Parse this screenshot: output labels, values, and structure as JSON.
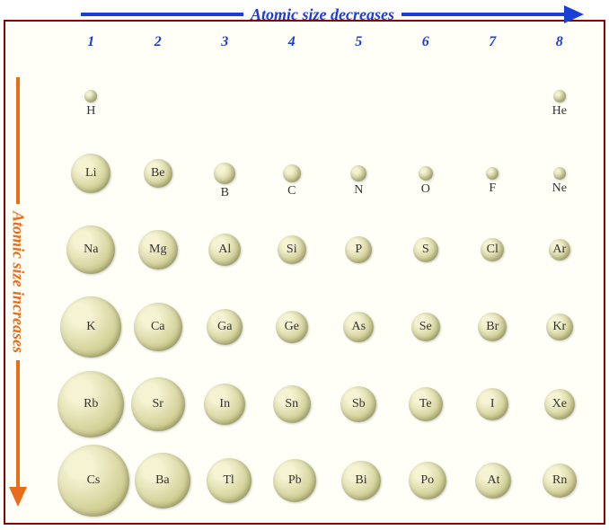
{
  "title_top": "Atomic size decreases",
  "title_left": "Atomic size increases",
  "top_arrow_color": "#1a3fd4",
  "left_arrow_color": "#e86c1a",
  "top_label_color": "#1a3fd4",
  "left_label_color": "#e86c1a",
  "header_color": "#1a3fd4",
  "border_color": "#8b0000",
  "atom_gradient_light": "#f5f3d2",
  "atom_gradient_dark": "#b8b66a",
  "label_color": "#333333",
  "background": "#fffff8",
  "title_fontsize": 18,
  "header_fontsize": 16,
  "element_fontsize": 14,
  "columns": [
    "1",
    "2",
    "3",
    "4",
    "5",
    "6",
    "7",
    "8"
  ],
  "rows": [
    [
      {
        "sym": "H",
        "r": 7,
        "below": true
      },
      null,
      null,
      null,
      null,
      null,
      null,
      {
        "sym": "He",
        "r": 7,
        "below": true
      }
    ],
    [
      {
        "sym": "Li",
        "r": 22,
        "below": false
      },
      {
        "sym": "Be",
        "r": 16,
        "below": false
      },
      {
        "sym": "B",
        "r": 12,
        "below": true
      },
      {
        "sym": "C",
        "r": 10,
        "below": true
      },
      {
        "sym": "N",
        "r": 9,
        "below": true
      },
      {
        "sym": "O",
        "r": 8,
        "below": true
      },
      {
        "sym": "F",
        "r": 7,
        "below": true
      },
      {
        "sym": "Ne",
        "r": 7,
        "below": true
      }
    ],
    [
      {
        "sym": "Na",
        "r": 27,
        "below": false
      },
      {
        "sym": "Mg",
        "r": 22,
        "below": false
      },
      {
        "sym": "Al",
        "r": 18,
        "below": false
      },
      {
        "sym": "Si",
        "r": 16,
        "below": false
      },
      {
        "sym": "P",
        "r": 15,
        "below": false
      },
      {
        "sym": "S",
        "r": 14,
        "below": false
      },
      {
        "sym": "Cl",
        "r": 13,
        "below": false
      },
      {
        "sym": "Ar",
        "r": 12,
        "below": false
      }
    ],
    [
      {
        "sym": "K",
        "r": 34,
        "below": false
      },
      {
        "sym": "Ca",
        "r": 27,
        "below": false
      },
      {
        "sym": "Ga",
        "r": 20,
        "below": false
      },
      {
        "sym": "Ge",
        "r": 18,
        "below": false
      },
      {
        "sym": "As",
        "r": 17,
        "below": false
      },
      {
        "sym": "Se",
        "r": 16,
        "below": false
      },
      {
        "sym": "Br",
        "r": 16,
        "below": false
      },
      {
        "sym": "Kr",
        "r": 15,
        "below": false
      }
    ],
    [
      {
        "sym": "Rb",
        "r": 37,
        "below": false
      },
      {
        "sym": "Sr",
        "r": 30,
        "below": false
      },
      {
        "sym": "In",
        "r": 23,
        "below": false
      },
      {
        "sym": "Sn",
        "r": 21,
        "below": false
      },
      {
        "sym": "Sb",
        "r": 20,
        "below": false
      },
      {
        "sym": "Te",
        "r": 19,
        "below": false
      },
      {
        "sym": "I",
        "r": 18,
        "below": false
      },
      {
        "sym": "Xe",
        "r": 17,
        "below": false
      }
    ],
    [
      {
        "sym": "Cs",
        "r": 40,
        "below": false
      },
      {
        "sym": "Ba",
        "r": 31,
        "below": false
      },
      {
        "sym": "Tl",
        "r": 25,
        "below": false
      },
      {
        "sym": "Pb",
        "r": 24,
        "below": false
      },
      {
        "sym": "Bi",
        "r": 22,
        "below": false
      },
      {
        "sym": "Po",
        "r": 21,
        "below": false
      },
      {
        "sym": "At",
        "r": 20,
        "below": false
      },
      {
        "sym": "Rn",
        "r": 19,
        "below": false
      }
    ]
  ]
}
